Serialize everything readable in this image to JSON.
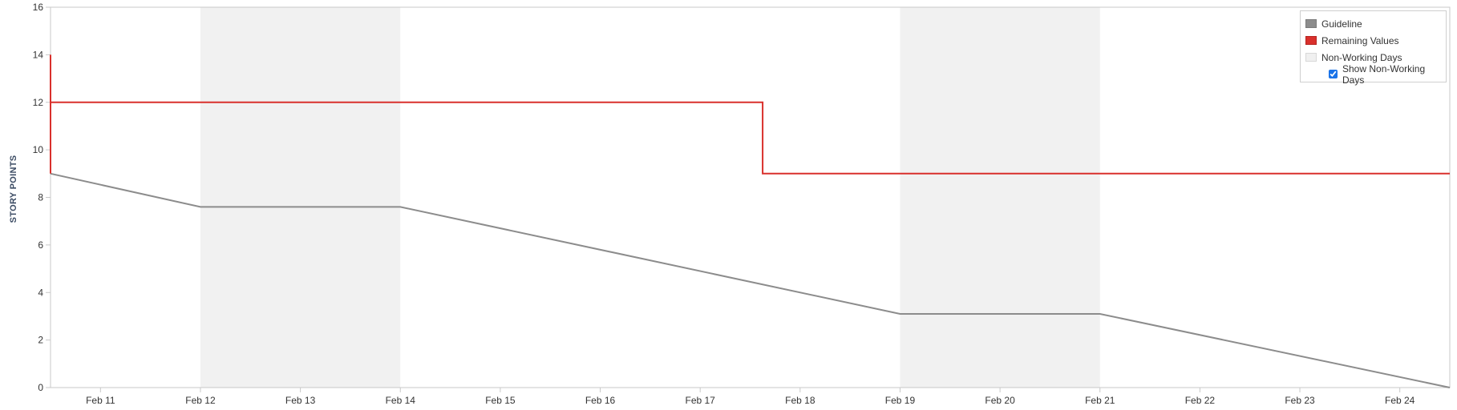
{
  "chart_data": {
    "type": "line",
    "title": "",
    "ylabel": "STORY POINTS",
    "xlabel": "",
    "ylim": [
      0,
      16
    ],
    "yticks": [
      0,
      2,
      4,
      6,
      8,
      10,
      12,
      14,
      16
    ],
    "xlim": [
      "Feb 10 12:00",
      "Feb 24 12:00"
    ],
    "x_tick_labels": [
      "Feb 11",
      "Feb 12",
      "Feb 13",
      "Feb 14",
      "Feb 15",
      "Feb 16",
      "Feb 17",
      "Feb 18",
      "Feb 19",
      "Feb 20",
      "Feb 21",
      "Feb 22",
      "Feb 23",
      "Feb 24"
    ],
    "non_working_days": [
      {
        "start": "Feb 12",
        "end": "Feb 14"
      },
      {
        "start": "Feb 19",
        "end": "Feb 21"
      }
    ],
    "series": [
      {
        "name": "Guideline",
        "color": "#8c8c8c",
        "points": [
          [
            "Feb 10 12:00",
            9
          ],
          [
            "Feb 12 00:00",
            7.6
          ],
          [
            "Feb 14 00:00",
            7.6
          ],
          [
            "Feb 19 00:00",
            3.1
          ],
          [
            "Feb 21 00:00",
            3.1
          ],
          [
            "Feb 24 12:00",
            0
          ]
        ]
      },
      {
        "name": "Remaining Values",
        "color": "#d9302c",
        "step": true,
        "points": [
          [
            "Feb 10 12:00",
            14
          ],
          [
            "Feb 10 12:00",
            9
          ],
          [
            "Feb 10 12:00",
            12
          ],
          [
            "Feb 17 15:00",
            12
          ],
          [
            "Feb 17 15:00",
            9
          ],
          [
            "Feb 24 12:00",
            9
          ]
        ]
      }
    ],
    "legend": {
      "placement": "top-right",
      "items": [
        {
          "label": "Guideline",
          "color": "#8c8c8c"
        },
        {
          "label": "Remaining Values",
          "color": "#d9302c"
        },
        {
          "label": "Non-Working Days",
          "color": "#f0f0f0"
        }
      ],
      "checkbox_label": "Show Non-Working Days",
      "checkbox_checked": true
    },
    "colors": {
      "non_working_fill": "#f1f1f1",
      "axis": "#c8c8c8"
    }
  }
}
